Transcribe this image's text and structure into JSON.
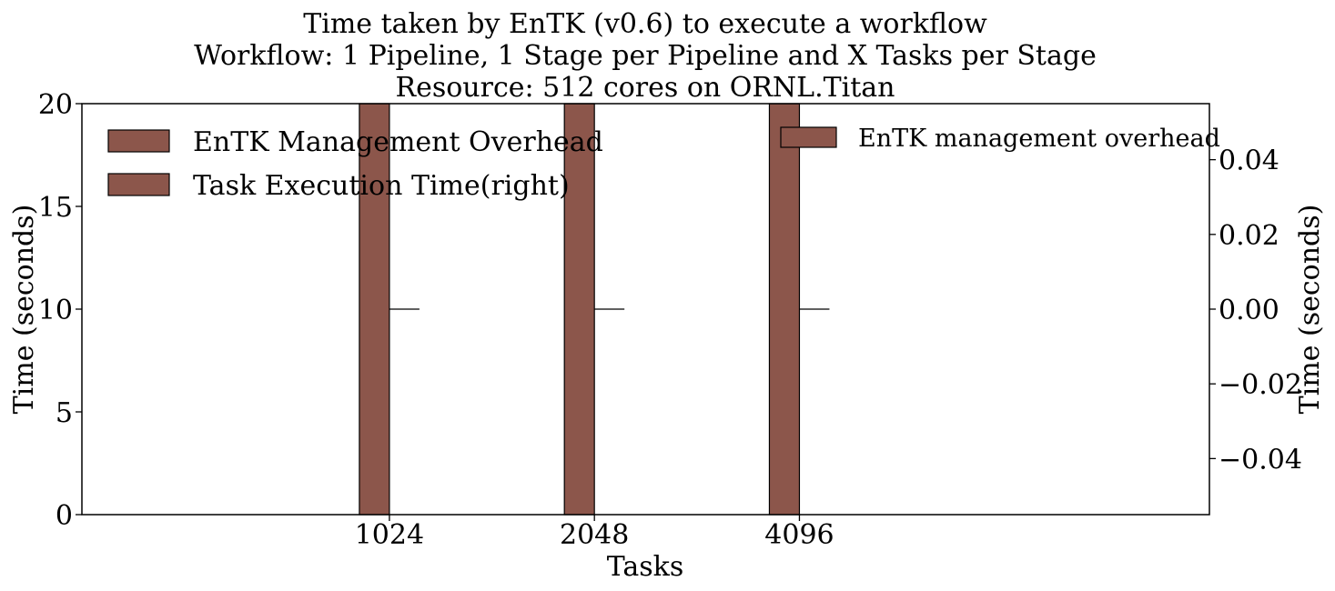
{
  "chart_data": {
    "type": "bar",
    "title_lines": [
      "Time taken by EnTK (v0.6) to execute a workflow",
      "Workflow: 1 Pipeline, 1 Stage per Pipeline and X Tasks per Stage",
      "Resource: 512 cores on ORNL.Titan"
    ],
    "xlabel": "Tasks",
    "ylabel_left": "Time (seconds)",
    "ylabel_right": "Time (seconds)",
    "categories": [
      "1024",
      "2048",
      "4096"
    ],
    "ylim_left": [
      0,
      20
    ],
    "yticks_left": [
      "0",
      "5",
      "10",
      "15",
      "20"
    ],
    "ylim_right": [
      -0.055,
      0.055
    ],
    "yticks_right": [
      "−0.04",
      "−0.02",
      "0.00",
      "0.02",
      "0.04"
    ],
    "series": [
      {
        "name": "EnTK Management Overhead",
        "axis": "left",
        "values": [
          20,
          20,
          20
        ]
      },
      {
        "name": "Task Execution Time(right)",
        "axis": "left",
        "values": [
          20,
          20,
          20
        ]
      },
      {
        "name": "EnTK management overhead",
        "axis": "right",
        "values": [
          0,
          0,
          0
        ]
      }
    ],
    "legend_left": [
      "EnTK Management Overhead",
      "Task Execution Time(right)"
    ],
    "legend_right": [
      "EnTK management overhead"
    ],
    "legend_placement_left": "top-left",
    "legend_placement_right": "top-right",
    "bar_color": "#8c564b",
    "grid": false
  }
}
